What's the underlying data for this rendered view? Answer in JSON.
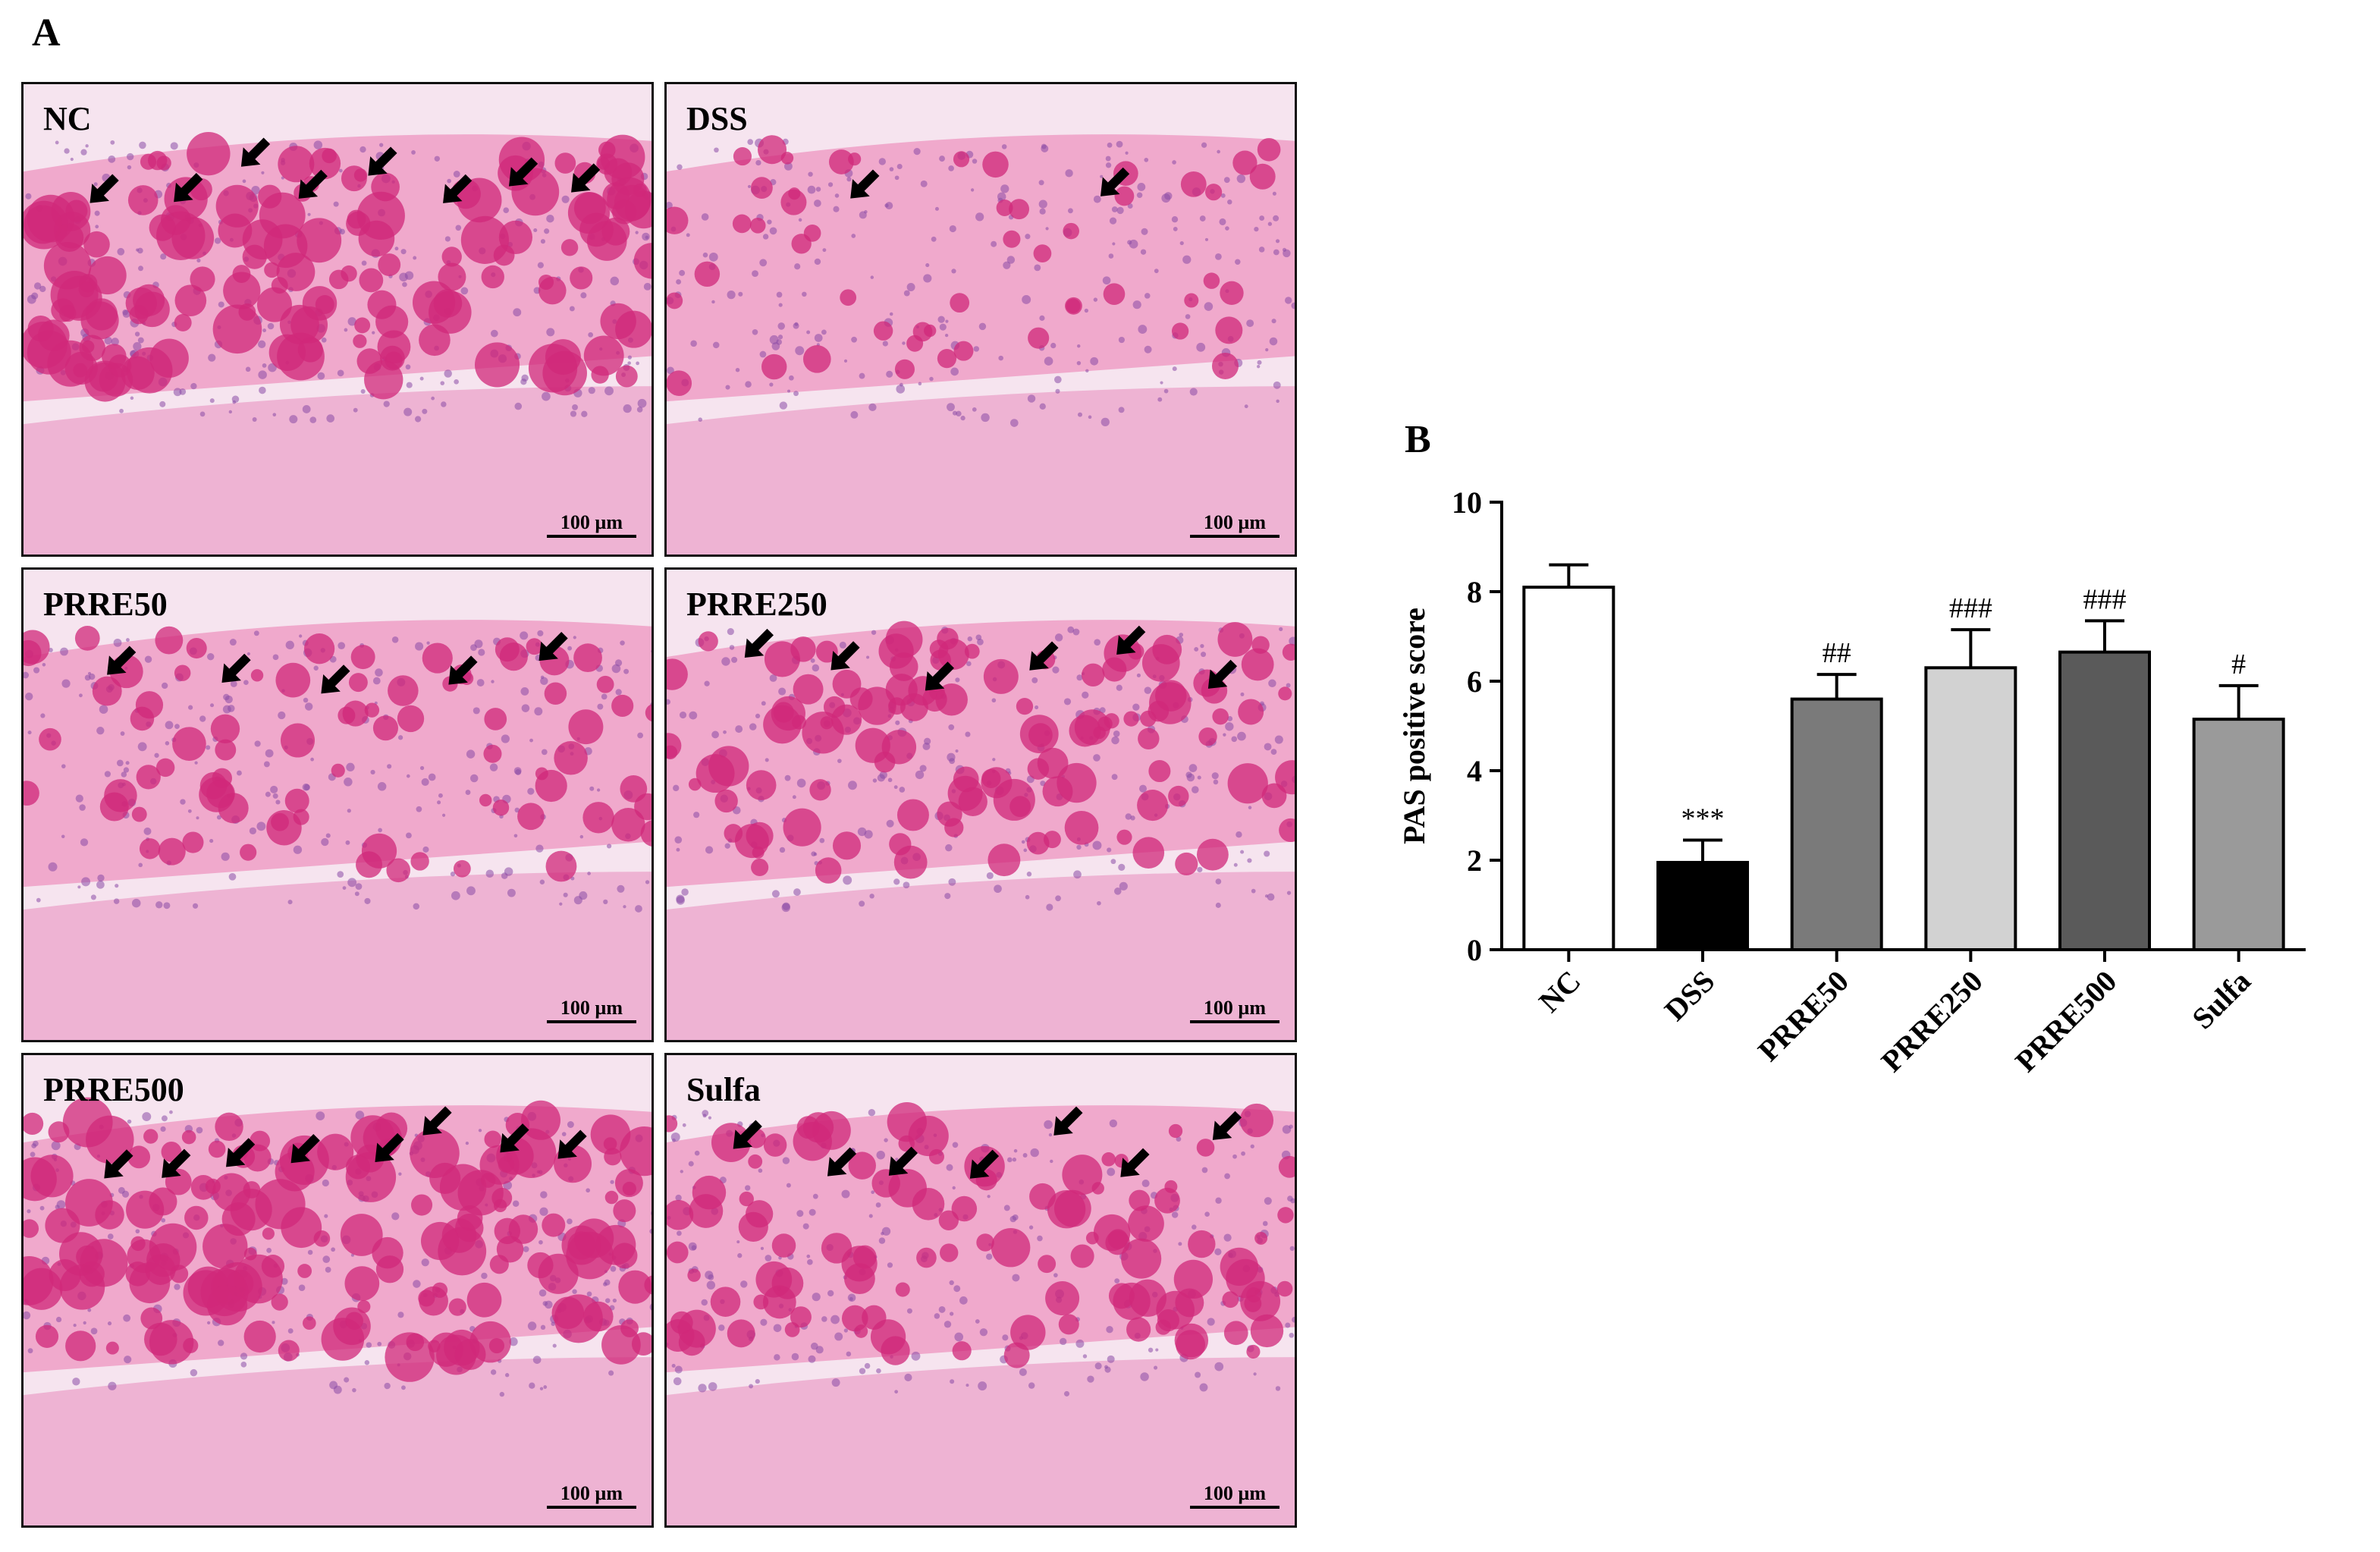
{
  "panel_a": {
    "letter": "A",
    "scale_label": "100 µm",
    "panels": [
      {
        "label": "NC",
        "arrows": 8,
        "density": 0.85
      },
      {
        "label": "DSS",
        "arrows": 2,
        "density": 0.15
      },
      {
        "label": "PRRE50",
        "arrows": 5,
        "density": 0.35
      },
      {
        "label": "PRRE250",
        "arrows": 6,
        "density": 0.6
      },
      {
        "label": "PRRE500",
        "arrows": 8,
        "density": 0.9
      },
      {
        "label": "Sulfa",
        "arrows": 7,
        "density": 0.55
      }
    ],
    "colors": {
      "magenta": "#d0287a",
      "pink": "#ef9fc6",
      "purple": "#8a4aa6",
      "background": "#f6e4ef"
    }
  },
  "chart_data": {
    "letter": "B",
    "type": "bar",
    "title": "",
    "xlabel": "",
    "ylabel": "PAS positive score",
    "ylim": [
      0,
      10
    ],
    "yticks": [
      0,
      2,
      4,
      6,
      8,
      10
    ],
    "grid": false,
    "legend": "none",
    "categories": [
      "NC",
      "DSS",
      "PRRE50",
      "PRRE250",
      "PRRE500",
      "Sulfa"
    ],
    "values": [
      8.1,
      1.95,
      5.6,
      6.3,
      6.65,
      5.15
    ],
    "errors": [
      0.5,
      0.5,
      0.55,
      0.85,
      0.7,
      0.75
    ],
    "annotations": [
      "",
      "***",
      "##",
      "###",
      "###",
      "#"
    ],
    "bar_colors": [
      "#ffffff",
      "#000000",
      "#7a7a7a",
      "#d2d2d2",
      "#5a5a5a",
      "#9a9a9a"
    ]
  }
}
